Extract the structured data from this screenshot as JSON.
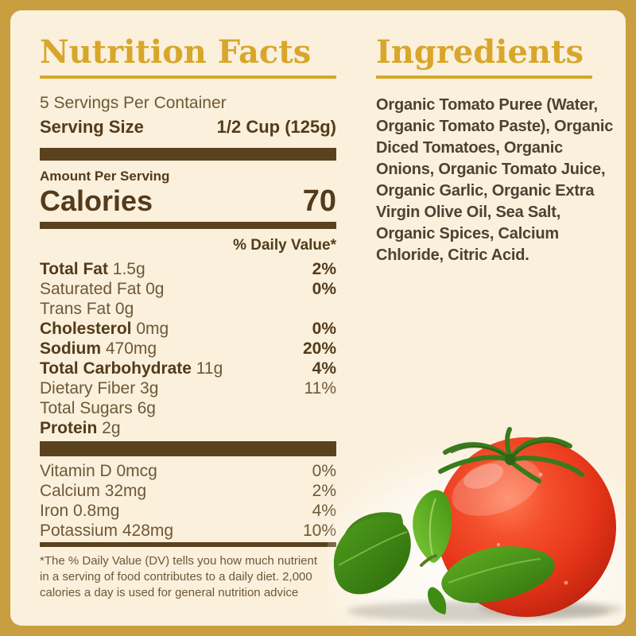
{
  "page": {
    "colors": {
      "frame_gold": "#c89e41",
      "background_cream": "#faf0dc",
      "heading_gold": "#d8a62a",
      "text_brown_dark": "#533b1b",
      "text_brown_mid": "#6e5837",
      "rule_brown": "#5a421e",
      "ingredients_ink": "#4e4134"
    }
  },
  "nutrition": {
    "title": "Nutrition Facts",
    "servings_per_container": "5 Servings Per Container",
    "serving_size_label": "Serving Size",
    "serving_size_value": "1/2 Cup (125g)",
    "amount_per_serving": "Amount Per Serving",
    "calories_label": "Calories",
    "calories_value": "70",
    "daily_value_header": "% Daily Value*",
    "rows": [
      {
        "bold": "Total Fat",
        "rest": " 1.5g",
        "pct": "2%",
        "pct_bold": true
      },
      {
        "bold": "",
        "rest": "Saturated Fat 0g",
        "pct": "0%",
        "pct_bold": true
      },
      {
        "bold": "",
        "rest": "Trans Fat 0g",
        "pct": "",
        "pct_bold": false
      },
      {
        "bold": "Cholesterol",
        "rest": " 0mg",
        "pct": "0%",
        "pct_bold": true
      },
      {
        "bold": "Sodium",
        "rest": " 470mg",
        "pct": "20%",
        "pct_bold": true
      },
      {
        "bold": "Total Carbohydrate",
        "rest": " 11g",
        "pct": "4%",
        "pct_bold": true
      },
      {
        "bold": "",
        "rest": "Dietary Fiber 3g",
        "pct": "11%",
        "pct_bold": false
      },
      {
        "bold": "",
        "rest": "Total Sugars 6g",
        "pct": "",
        "pct_bold": false
      },
      {
        "bold": "Protein",
        "rest": " 2g",
        "pct": "",
        "pct_bold": false
      }
    ],
    "vitamins": [
      {
        "bold": "",
        "rest": "Vitamin D 0mcg",
        "pct": "0%",
        "pct_bold": false
      },
      {
        "bold": "",
        "rest": "Calcium 32mg",
        "pct": "2%",
        "pct_bold": false
      },
      {
        "bold": "",
        "rest": "Iron 0.8mg",
        "pct": "4%",
        "pct_bold": false
      },
      {
        "bold": "",
        "rest": "Potassium 428mg",
        "pct": "10%",
        "pct_bold": false
      }
    ],
    "footnote": "*The % Daily Value (DV) tells you how much nutrient in a serving of food contributes to a daily diet. 2,000 calories a day is used for general nutrition advice"
  },
  "ingredients": {
    "title": "Ingredients",
    "text": "Organic Tomato Puree (Water, Organic Tomato Paste), Organic Diced Tomatoes, Organic Onions, Organic Tomato Juice, Organic Garlic, Organic Extra Virgin Olive Oil, Sea Salt, Organic Spices, Calcium Chloride, Citric Acid."
  },
  "photo": {
    "subject": "Fresh tomato with basil leaves",
    "tomato_color": "#e8341b",
    "basil_color": "#4f9e1b",
    "shadow_color": "#9a9283",
    "backdrop_color": "#ffffff"
  }
}
